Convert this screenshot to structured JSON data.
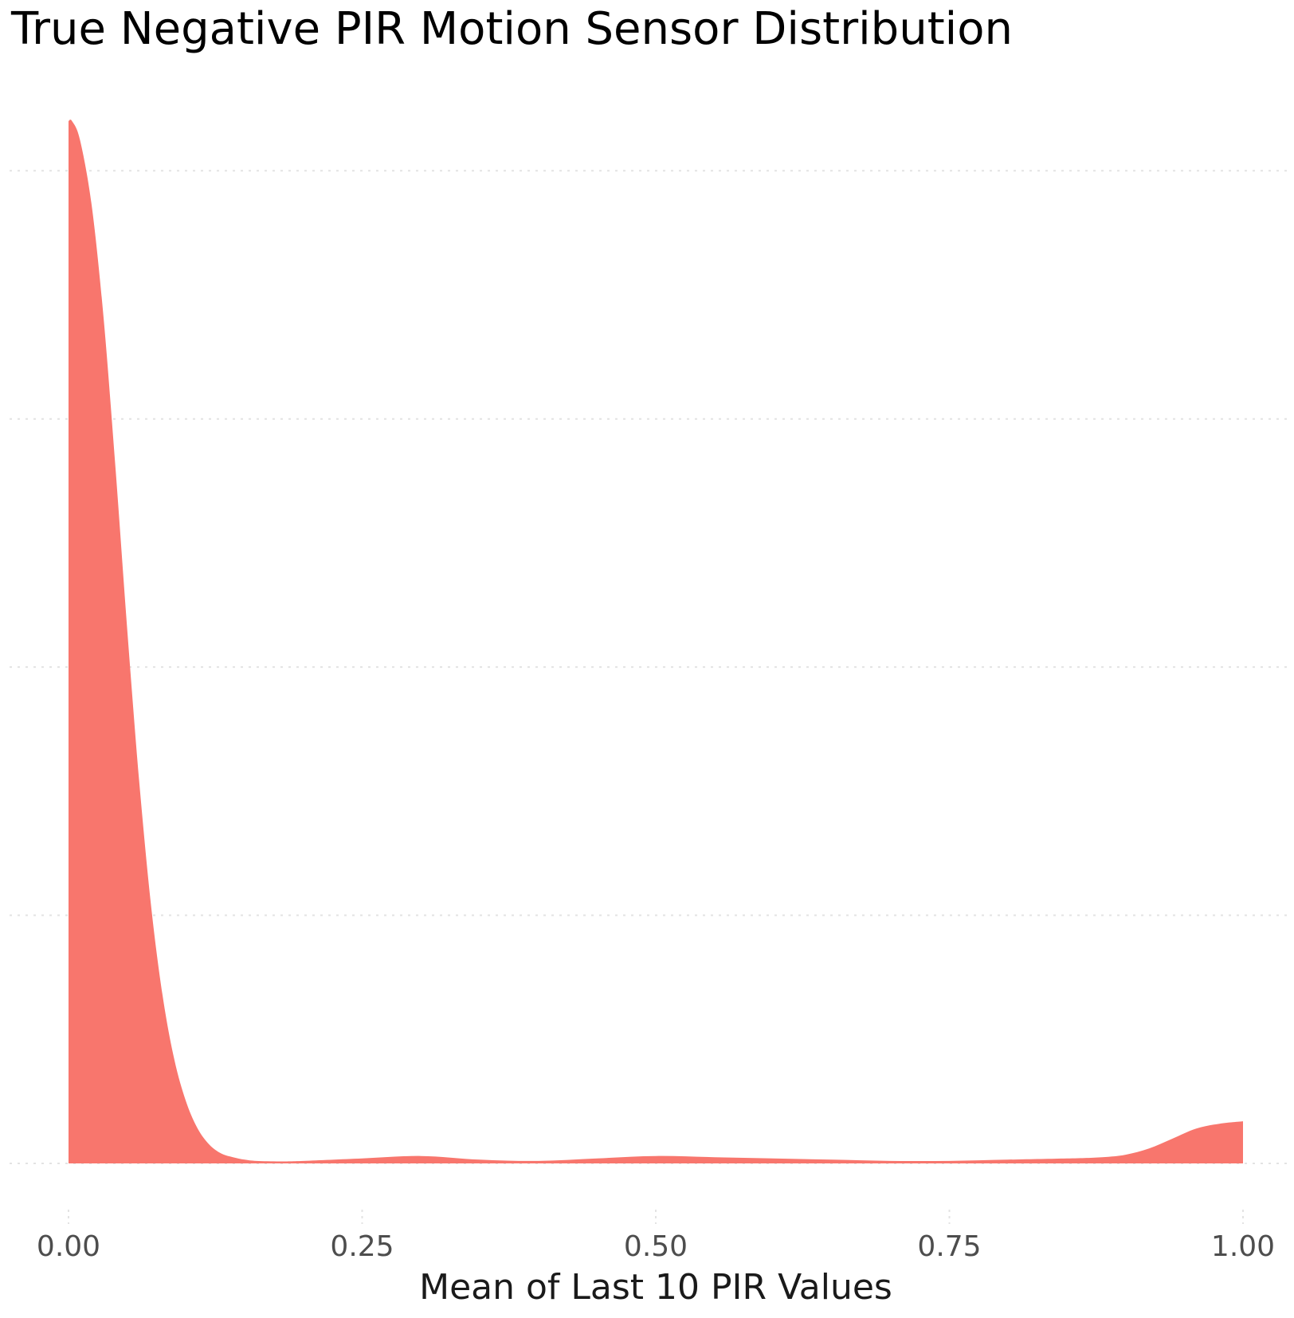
{
  "chart_data": {
    "type": "area",
    "subtype": "density",
    "title": "True Negative PIR Motion Sensor Distribution",
    "xlabel": "Mean of Last 10 PIR Values",
    "ylabel": "",
    "xlim": [
      0,
      1
    ],
    "ylim": [
      0,
      4.2
    ],
    "x_ticks": [
      0,
      0.25,
      0.5,
      0.75,
      1.0
    ],
    "x_tick_labels": [
      "0.00",
      "0.25",
      "0.50",
      "0.75",
      "1.00"
    ],
    "y_gridlines": [
      0,
      1,
      2,
      3,
      4
    ],
    "y_tick_labels_visible": false,
    "grid": "major horizontal and vertical, dotted",
    "legend": "none",
    "fill_color": "#F8766D",
    "series": [
      {
        "x": [
          0.0,
          0.003,
          0.01,
          0.02,
          0.03,
          0.04,
          0.05,
          0.06,
          0.07,
          0.08,
          0.09,
          0.1,
          0.11,
          0.12,
          0.13,
          0.14,
          0.15,
          0.16,
          0.18,
          0.2,
          0.25,
          0.3,
          0.35,
          0.4,
          0.45,
          0.5,
          0.55,
          0.6,
          0.65,
          0.7,
          0.75,
          0.8,
          0.85,
          0.88,
          0.9,
          0.92,
          0.94,
          0.96,
          0.98,
          1.0
        ],
        "y": [
          4.2,
          4.2,
          4.12,
          3.85,
          3.4,
          2.8,
          2.15,
          1.55,
          1.05,
          0.68,
          0.42,
          0.25,
          0.14,
          0.075,
          0.04,
          0.025,
          0.015,
          0.01,
          0.008,
          0.01,
          0.02,
          0.03,
          0.015,
          0.01,
          0.02,
          0.03,
          0.025,
          0.02,
          0.015,
          0.01,
          0.01,
          0.015,
          0.02,
          0.025,
          0.035,
          0.06,
          0.1,
          0.14,
          0.16,
          0.17
        ]
      }
    ]
  }
}
